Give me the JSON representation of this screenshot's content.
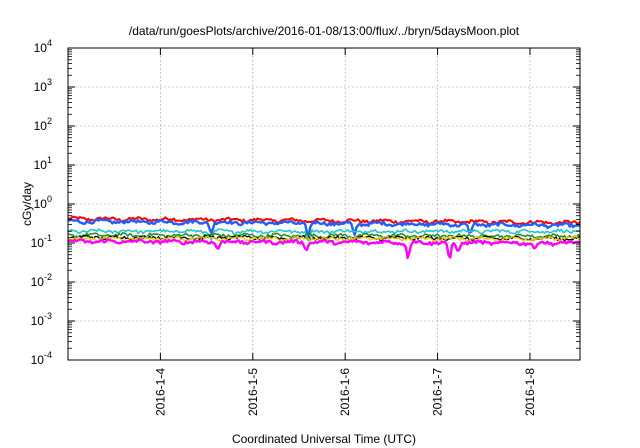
{
  "chart_data": {
    "type": "line",
    "title": "/data/run/goesPlots/archive/2016-01-08/13:00/flux/../bryn/5daysMoon.plot",
    "xlabel": "Coordinated Universal Time (UTC)",
    "ylabel": "cGy/day",
    "yscale": "log",
    "ylim": [
      0.0001,
      10000
    ],
    "y_ticks": [
      {
        "value": 0.0001,
        "base": "10",
        "exp": "-4"
      },
      {
        "value": 0.001,
        "base": "10",
        "exp": "-3"
      },
      {
        "value": 0.01,
        "base": "10",
        "exp": "-2"
      },
      {
        "value": 0.1,
        "base": "10",
        "exp": "-1"
      },
      {
        "value": 1,
        "base": "10",
        "exp": "0"
      },
      {
        "value": 10,
        "base": "10",
        "exp": "1"
      },
      {
        "value": 100,
        "base": "10",
        "exp": "2"
      },
      {
        "value": 1000,
        "base": "10",
        "exp": "3"
      },
      {
        "value": 10000,
        "base": "10",
        "exp": "4"
      }
    ],
    "xlim": [
      "2016-01-03 00:00",
      "2016-01-08 13:00"
    ],
    "x_ticks": [
      {
        "value": "2016-01-04",
        "label": "2016-1-4"
      },
      {
        "value": "2016-01-05",
        "label": "2016-1-5"
      },
      {
        "value": "2016-01-06",
        "label": "2016-1-6"
      },
      {
        "value": "2016-01-07",
        "label": "2016-1-7"
      },
      {
        "value": "2016-01-08",
        "label": "2016-1-8"
      }
    ],
    "grid": true,
    "legend": "none",
    "series": [
      {
        "color": "#ff0000",
        "level_start": 0.42,
        "level_end": 0.33,
        "width": 2.0,
        "dips": []
      },
      {
        "color": "#1f5fff",
        "level_start": 0.36,
        "level_end": 0.28,
        "width": 2.4,
        "dips": [
          [
            1.55,
            0.18
          ],
          [
            2.6,
            0.15
          ],
          [
            3.1,
            0.16
          ],
          [
            4.35,
            0.17
          ]
        ]
      },
      {
        "color": "#22c8c8",
        "level_start": 0.2,
        "level_end": 0.2,
        "width": 1.6,
        "dips": [
          [
            1.55,
            0.12
          ],
          [
            2.6,
            0.11
          ]
        ]
      },
      {
        "color": "#228b22",
        "level_start": 0.16,
        "level_end": 0.15,
        "width": 1.5,
        "dips": []
      },
      {
        "color": "#000000",
        "level_start": 0.14,
        "level_end": 0.13,
        "width": 1.3,
        "dips": []
      },
      {
        "color": "#e6c800",
        "level_start": 0.13,
        "level_end": 0.13,
        "width": 1.4,
        "dips": []
      },
      {
        "color": "#ff00ff",
        "level_start": 0.11,
        "level_end": 0.1,
        "width": 2.4,
        "dips": [
          [
            1.62,
            0.07
          ],
          [
            2.58,
            0.065
          ],
          [
            3.68,
            0.04
          ],
          [
            4.13,
            0.035
          ],
          [
            4.22,
            0.06
          ],
          [
            5.05,
            0.07
          ]
        ]
      }
    ]
  }
}
